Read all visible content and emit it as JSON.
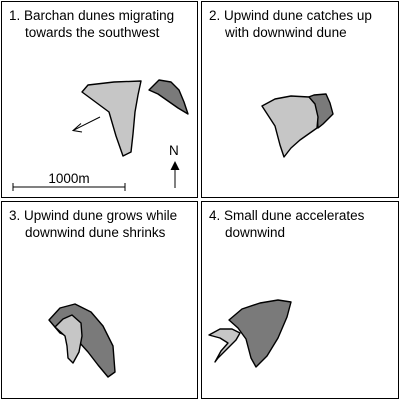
{
  "panels": [
    {
      "number": "1.",
      "caption_lines": [
        "Barchan dunes migrating",
        "towards the southwest"
      ],
      "north_label": "N",
      "scale_label": "1000m"
    },
    {
      "number": "2.",
      "caption_lines": [
        "Upwind dune catches up",
        "with downwind dune"
      ]
    },
    {
      "number": "3.",
      "caption_lines": [
        "Upwind dune grows while",
        "downwind dune shrinks"
      ]
    },
    {
      "number": "4.",
      "caption_lines": [
        "Small dune accelerates",
        "downwind"
      ]
    }
  ],
  "colors": {
    "border": "#000000",
    "dune_light": "#c6c6c6",
    "dune_dark": "#7a7a7a",
    "background": "#ffffff"
  },
  "icons": {
    "migration_arrow": "arrow-southwest-icon",
    "north_arrow": "north-arrow-icon"
  }
}
